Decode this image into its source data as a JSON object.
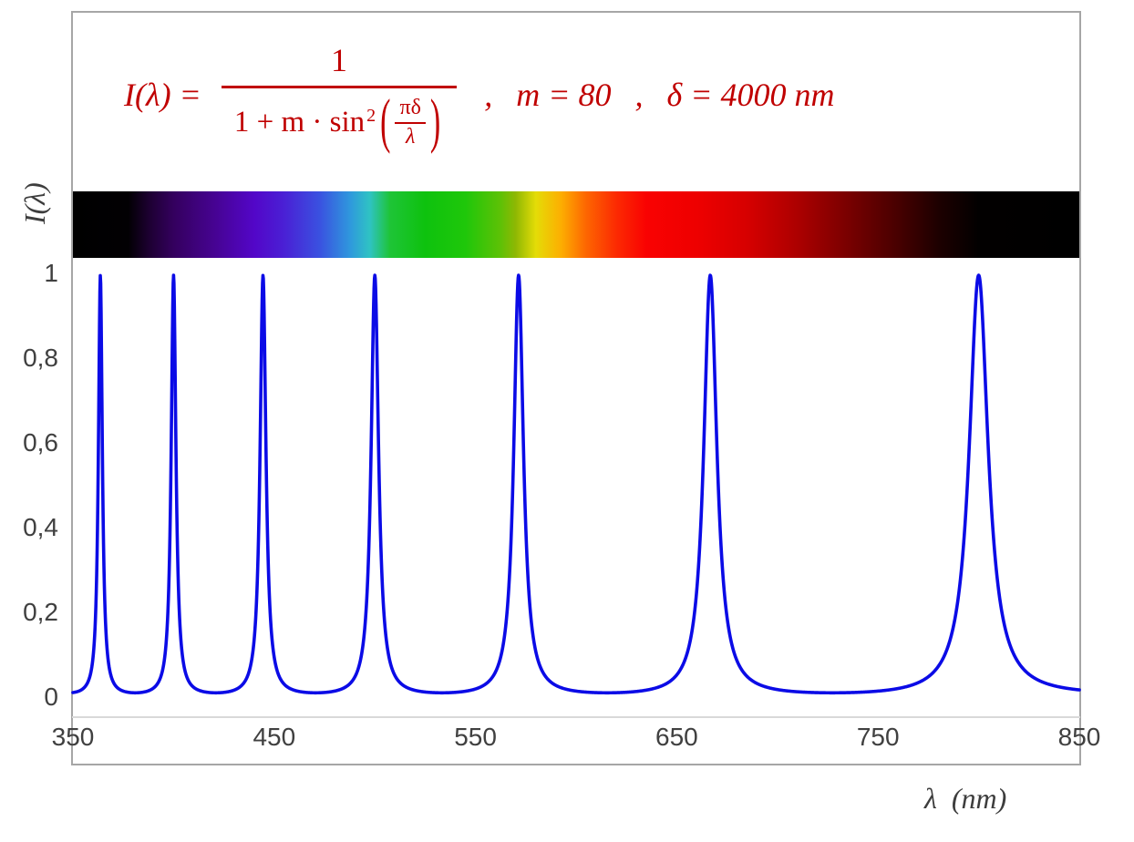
{
  "formula": {
    "lhs": "I(λ) =",
    "numerator": "1",
    "den_prefix": "1 + m · sin",
    "den_exponent": "2",
    "paren_open": "(",
    "paren_close": ")",
    "inner_numerator": "πδ",
    "inner_denominator": "λ",
    "separator_comma": ",",
    "param_m": "m = 80",
    "param_delta": "δ = 4000 nm",
    "color": "#c00000"
  },
  "axes": {
    "y_title": "I(λ)",
    "x_title": "λ  (nm)",
    "y_ticks": [
      "1",
      "0,8",
      "0,6",
      "0,4",
      "0,2",
      "0"
    ],
    "x_ticks": [
      "350",
      "450",
      "550",
      "650",
      "750",
      "850"
    ]
  },
  "chart_data": {
    "type": "line",
    "function": "I(λ) = 1 / (1 + m·sin²(πδ/λ))",
    "params": {
      "m": 80,
      "delta_nm": 4000
    },
    "x_range_nm": [
      350,
      850
    ],
    "y_range": [
      0,
      1
    ],
    "x_tick_values": [
      350,
      450,
      550,
      650,
      750,
      850
    ],
    "y_tick_values": [
      0,
      0.2,
      0.4,
      0.6,
      0.8,
      1
    ],
    "peak_wavelengths_nm": [
      363.6,
      400.0,
      444.4,
      500.0,
      571.4,
      666.7,
      800.0
    ],
    "peak_intensity": 1,
    "baseline_intensity": 0.012,
    "curve_color": "#0b0be6",
    "sample_step_nm": 0.2,
    "grid": false,
    "legend": false
  },
  "spectrum_strip": {
    "range_nm": [
      350,
      850
    ],
    "stops": [
      {
        "pct": 0,
        "color": "#000000"
      },
      {
        "pct": 5.5,
        "color": "#020003"
      },
      {
        "pct": 7.5,
        "color": "#1c0030"
      },
      {
        "pct": 10,
        "color": "#34005e"
      },
      {
        "pct": 14,
        "color": "#460391"
      },
      {
        "pct": 18,
        "color": "#5306c8"
      },
      {
        "pct": 21,
        "color": "#4a20d5"
      },
      {
        "pct": 24.5,
        "color": "#3a51e0"
      },
      {
        "pct": 27.5,
        "color": "#2f97dd"
      },
      {
        "pct": 29.5,
        "color": "#2fc3c3"
      },
      {
        "pct": 31.5,
        "color": "#1ec437"
      },
      {
        "pct": 35,
        "color": "#0ec20e"
      },
      {
        "pct": 39,
        "color": "#1fc70a"
      },
      {
        "pct": 42.5,
        "color": "#5ec106"
      },
      {
        "pct": 44,
        "color": "#8fb803"
      },
      {
        "pct": 46,
        "color": "#e4dc07"
      },
      {
        "pct": 48.5,
        "color": "#fdae01"
      },
      {
        "pct": 51,
        "color": "#fd6601"
      },
      {
        "pct": 54,
        "color": "#fc2a02"
      },
      {
        "pct": 57,
        "color": "#f90202"
      },
      {
        "pct": 62,
        "color": "#ee0000"
      },
      {
        "pct": 67,
        "color": "#d60000"
      },
      {
        "pct": 72,
        "color": "#ac0000"
      },
      {
        "pct": 77,
        "color": "#790000"
      },
      {
        "pct": 82,
        "color": "#470000"
      },
      {
        "pct": 86,
        "color": "#1d0000"
      },
      {
        "pct": 90,
        "color": "#020000"
      },
      {
        "pct": 100,
        "color": "#000000"
      }
    ]
  }
}
